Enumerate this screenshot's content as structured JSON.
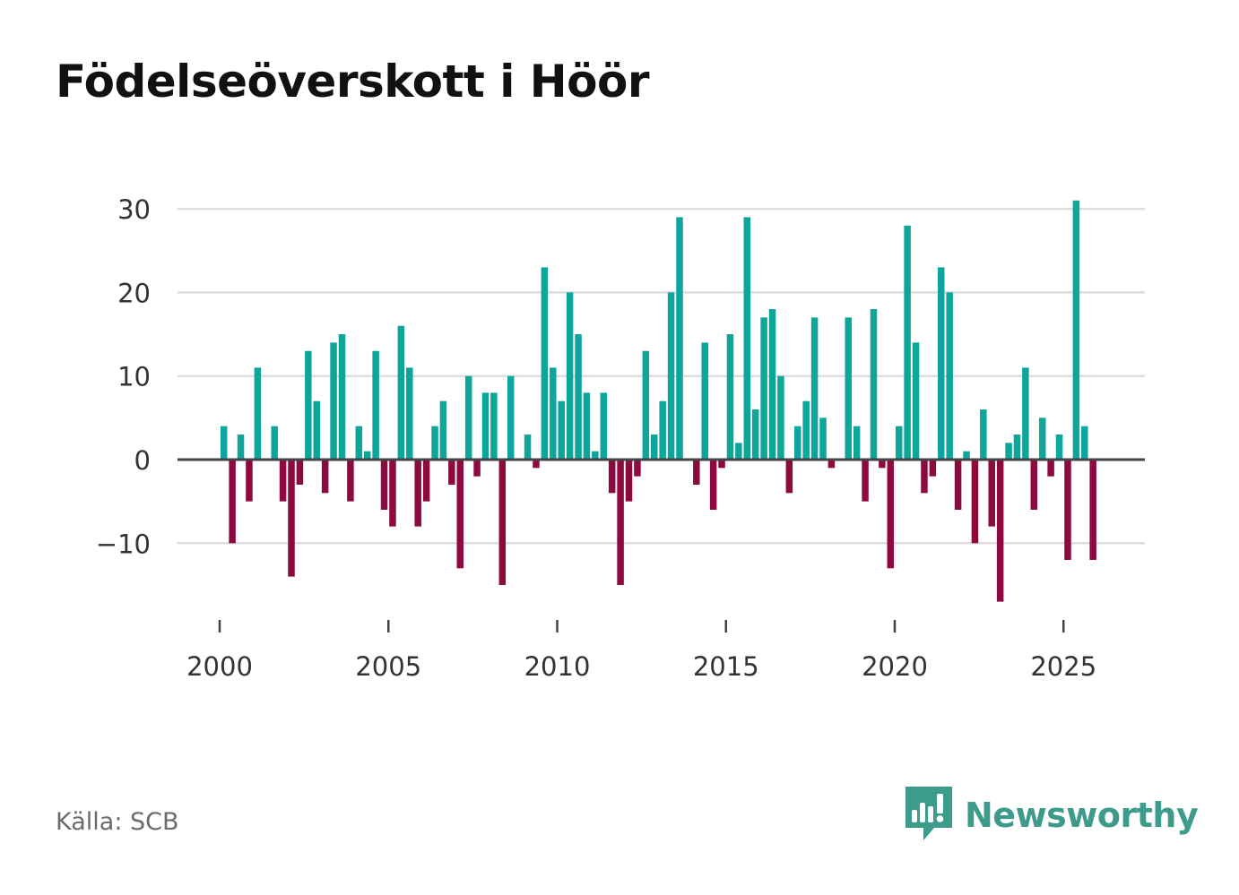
{
  "title": "Födelseöverskott i Höör",
  "source": "Källa: SCB",
  "brand": {
    "name": "Newsworthy",
    "icon": "newsworthy-logo-icon"
  },
  "colors": {
    "positive": "#0ea59b",
    "negative": "#8d0a3f",
    "brand": "#3d9b8c",
    "grid": "#dddddd",
    "zero_line": "#444444"
  },
  "chart_data": {
    "type": "bar",
    "title": "Födelseöverskott i Höör",
    "xlabel": "",
    "ylabel": "",
    "ylim": [
      -20,
      30
    ],
    "yticks": [
      30,
      20,
      10,
      0,
      -10
    ],
    "ytick_labels": [
      "30",
      "20",
      "10",
      "0",
      "−10"
    ],
    "xlim": [
      2000,
      2027.5
    ],
    "xticks": [
      2000,
      2005,
      2010,
      2015,
      2020,
      2025
    ],
    "xtick_labels": [
      "2000",
      "2005",
      "2010",
      "2015",
      "2020",
      "2025"
    ],
    "period_step": 0.25,
    "start": 2000.125,
    "series": [
      {
        "name": "Födelseöverskott",
        "values": [
          4,
          -10,
          3,
          -5,
          11,
          0,
          4,
          -5,
          -14,
          -3,
          13,
          7,
          -4,
          14,
          15,
          -5,
          4,
          1,
          13,
          -6,
          -8,
          16,
          11,
          -8,
          -5,
          4,
          7,
          -3,
          -13,
          10,
          -2,
          8,
          8,
          -15,
          10,
          0,
          3,
          -1,
          23,
          11,
          7,
          20,
          15,
          8,
          1,
          8,
          -4,
          -15,
          -5,
          -2,
          13,
          3,
          7,
          20,
          29,
          0,
          -3,
          14,
          -6,
          -1,
          15,
          2,
          29,
          6,
          17,
          18,
          10,
          -4,
          4,
          7,
          17,
          5,
          -1,
          0,
          17,
          4,
          -5,
          18,
          -1,
          -13,
          4,
          28,
          14,
          -4,
          -2,
          23,
          20,
          -6,
          1,
          -10,
          6,
          -8,
          -17,
          2,
          3,
          11,
          -6,
          5,
          -2,
          3,
          -12,
          31,
          4,
          -12
        ]
      }
    ]
  }
}
